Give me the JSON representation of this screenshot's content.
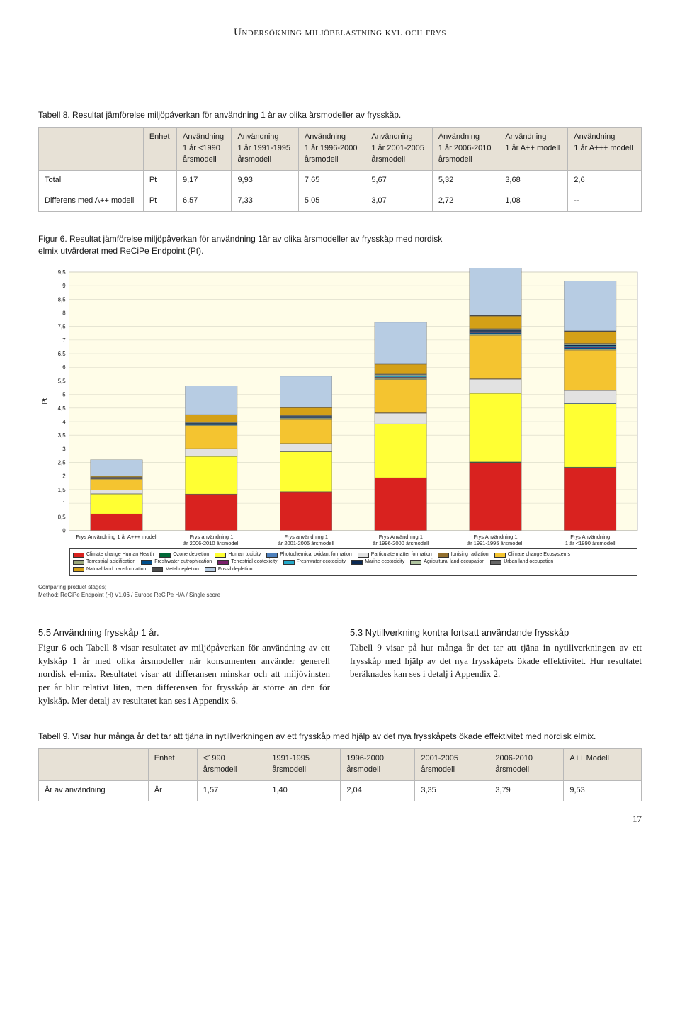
{
  "header": "Undersökning miljöbelastning kyl och frys",
  "table8": {
    "caption": "Tabell 8. Resultat jämförelse miljöpåverkan för användning 1 år av olika årsmodeller av frysskåp.",
    "headers": [
      "",
      "Enhet",
      "Användning\n1 år <1990\nårsmodell",
      "Användning\n1 år 1991-1995\nårsmodell",
      "Användning\n1 år 1996-2000\nårsmodell",
      "Användning\n1 år 2001-2005\nårsmodell",
      "Användning\n1 år 2006-2010\nårsmodell",
      "Användning\n1 år A++ modell",
      "Användning\n1 år A+++ modell"
    ],
    "rows": [
      [
        "Total",
        "Pt",
        "9,17",
        "9,93",
        "7,65",
        "5,67",
        "5,32",
        "3,68",
        "2,6"
      ],
      [
        "Differens med A++ modell",
        "Pt",
        "6,57",
        "7,33",
        "5,05",
        "3,07",
        "2,72",
        "1,08",
        "--"
      ]
    ]
  },
  "figure6": {
    "caption": "Figur 6. Resultat jämförelse miljöpåverkan för användning 1år av olika årsmodeller av frysskåp med nordisk elmix utvärderat med ReCiPe Endpoint (Pt).",
    "ylabel": "Pt",
    "ymax": 9.5,
    "ytick_step": 0.5,
    "background": "#fffde8",
    "grid_color": "#d8d7c6",
    "categories": [
      "Frys Användning 1 år A+++ modell",
      "Frys användning 1\når 2006-2010 årsmodell",
      "Frys användning 1\når 2001-2005 årsmodell",
      "Frys Användning 1\når 1996-2000 årsmodell",
      "Frys Användning 1\når 1991-1995 årsmodell",
      "Frys Användning\n1 år <1990 årsmodell"
    ],
    "segment_names": [
      "Climate change Human Health",
      "Ozone depletion",
      "Human toxicity",
      "Photochemical oxidant formation",
      "Particulate matter formation",
      "Ionising radiation",
      "Climate change Ecosystems",
      "Terrestrial acidification",
      "Freshwater eutrophication",
      "Terrestrial ecotoxicity",
      "Freshwater ecotoxicity",
      "Marine ecotoxicity",
      "Agricultural land occupation",
      "Urban land occupation",
      "Natural land transformation",
      "Metal depletion",
      "Fossil depletion"
    ],
    "segment_colors": [
      "#d9221f",
      "#006837",
      "#ffff33",
      "#4f81bd",
      "#e2e2e2",
      "#926f2e",
      "#f4c430",
      "#9aa77a",
      "#004f8c",
      "#7a1f6c",
      "#24a9c9",
      "#0a2954",
      "#b0c4a0",
      "#666666",
      "#d4a017",
      "#4b4b4b",
      "#b7cce3"
    ],
    "stacks": [
      {
        "total": 2.6,
        "segs": [
          0.6,
          0.01,
          0.73,
          0.01,
          0.13,
          0.01,
          0.39,
          0.02,
          0.01,
          0.01,
          0.01,
          0.01,
          0.01,
          0.01,
          0.03,
          0.01,
          0.6
        ]
      },
      {
        "total": 5.32,
        "segs": [
          1.33,
          0.01,
          1.38,
          0.01,
          0.27,
          0.01,
          0.84,
          0.03,
          0.02,
          0.01,
          0.02,
          0.02,
          0.02,
          0.01,
          0.26,
          0.02,
          1.06
        ]
      },
      {
        "total": 5.67,
        "segs": [
          1.42,
          0.01,
          1.46,
          0.01,
          0.29,
          0.01,
          0.9,
          0.03,
          0.02,
          0.01,
          0.02,
          0.02,
          0.02,
          0.01,
          0.28,
          0.02,
          1.14
        ]
      },
      {
        "total": 7.65,
        "segs": [
          1.92,
          0.02,
          1.96,
          0.02,
          0.39,
          0.02,
          1.22,
          0.04,
          0.03,
          0.02,
          0.03,
          0.03,
          0.03,
          0.02,
          0.36,
          0.03,
          1.51
        ]
      },
      {
        "total": 9.93,
        "segs": [
          2.5,
          0.02,
          2.52,
          0.02,
          0.5,
          0.02,
          1.59,
          0.05,
          0.04,
          0.02,
          0.04,
          0.04,
          0.04,
          0.02,
          0.46,
          0.04,
          2.01
        ]
      },
      {
        "total": 9.17,
        "segs": [
          2.31,
          0.02,
          2.33,
          0.02,
          0.46,
          0.02,
          1.47,
          0.05,
          0.04,
          0.02,
          0.04,
          0.04,
          0.04,
          0.02,
          0.42,
          0.04,
          1.83
        ]
      }
    ],
    "footnote": "Comparing product stages;\nMethod: ReCiPe Endpoint (H) V1.06 / Europe ReCiPe H/A / Single score"
  },
  "section55": {
    "title": "5.5 Användning frysskåp 1 år.",
    "body": "Figur 6 och Tabell 8 visar resultatet av miljöpåverkan för användning av ett kylskåp 1 år med olika årsmodeller när konsumenten använder generell nordisk el-mix. Resultatet visar att differansen minskar och att miljövinsten per år blir relativt liten, men differensen för frysskåp är större än den för kylskåp. Mer detalj av resultatet kan ses i Appendix 6."
  },
  "section53": {
    "title": "5.3 Nytillverkning kontra fortsatt användande frysskåp",
    "body": "Tabell 9 visar på hur många år det tar att tjäna in nytillverkningen av ett frysskåp med hjälp av det nya frysskåpets ökade effektivitet. Hur resultatet beräknades kan ses i detalj i Appendix 2."
  },
  "table9": {
    "caption": "Tabell 9. Visar hur många år det tar att tjäna in nytillverkningen av ett frysskåp med hjälp av det nya frysskåpets ökade effektivitet med nordisk elmix.",
    "headers": [
      "",
      "Enhet",
      "<1990\nårsmodell",
      "1991-1995\nårsmodell",
      "1996-2000\nårsmodell",
      "2001-2005\nårsmodell",
      "2006-2010\nårsmodell",
      "A++ Modell"
    ],
    "rows": [
      [
        "År av användning",
        "År",
        "1,57",
        "1,40",
        "2,04",
        "3,35",
        "3,79",
        "9,53"
      ]
    ]
  },
  "page_number": "17"
}
